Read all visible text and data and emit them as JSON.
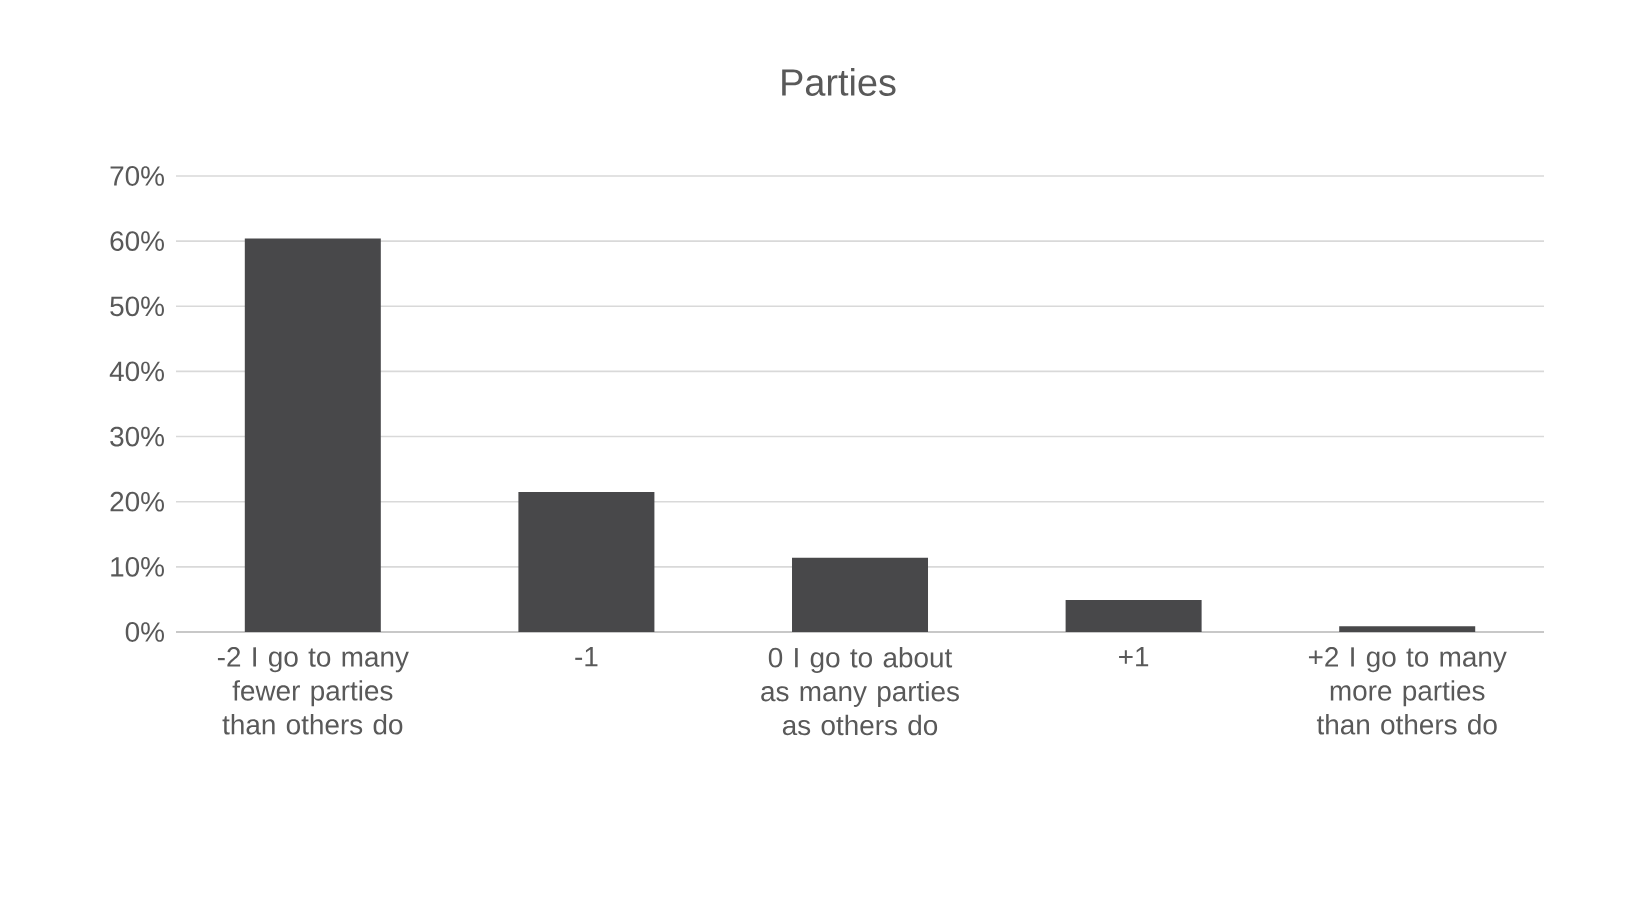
{
  "chart_data": {
    "type": "bar",
    "title": "Parties",
    "categories": [
      "-2 I go to many fewer parties than others do",
      "-1",
      "0 I go to about as many parties as others do",
      "+1",
      "+2 I go to many more parties than others do"
    ],
    "values": [
      60.4,
      21.5,
      11.4,
      4.9,
      0.9
    ],
    "color": "#48484a",
    "ylim": [
      0,
      70
    ],
    "yticks": [
      {
        "value": 0,
        "label": "0%"
      },
      {
        "value": 10,
        "label": "10%"
      },
      {
        "value": 20,
        "label": "20%"
      },
      {
        "value": 30,
        "label": "30%"
      },
      {
        "value": 40,
        "label": "40%"
      },
      {
        "value": 50,
        "label": "50%"
      },
      {
        "value": 60,
        "label": "60%"
      },
      {
        "value": 70,
        "label": "70%"
      }
    ],
    "grid": "y"
  }
}
